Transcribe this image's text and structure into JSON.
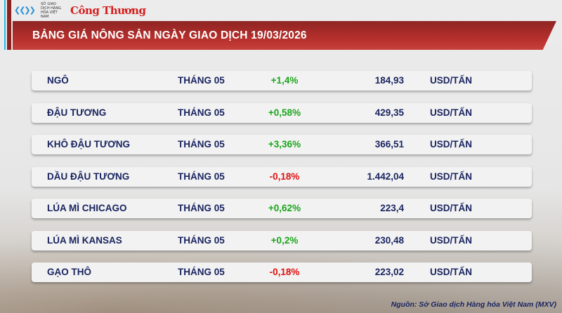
{
  "header": {
    "logo_org": "SỞ GIAO DỊCH HÀNG HÓA VIỆT NAM",
    "logo_brand": "Công Thương",
    "title": "BẢNG GIÁ NÔNG SẢN NGÀY GIAO DỊCH 19/03/2026"
  },
  "colors": {
    "banner": "#b52f2c",
    "up": "#1aa51a",
    "down": "#e01010",
    "text": "#1a2560"
  },
  "rows": [
    {
      "name": "NGÔ",
      "month": "THÁNG 05",
      "change": "+1,4%",
      "direction": "up",
      "price": "184,93",
      "unit": "USD/TẤN"
    },
    {
      "name": "ĐẬU TƯƠNG",
      "month": "THÁNG 05",
      "change": "+0,58%",
      "direction": "up",
      "price": "429,35",
      "unit": "USD/TẤN"
    },
    {
      "name": "KHÔ ĐẬU TƯƠNG",
      "month": "THÁNG 05",
      "change": "+3,36%",
      "direction": "up",
      "price": "366,51",
      "unit": "USD/TẤN"
    },
    {
      "name": "DẦU ĐẬU TƯƠNG",
      "month": "THÁNG 05",
      "change": "-0,18%",
      "direction": "down",
      "price": "1.442,04",
      "unit": "USD/TẤN"
    },
    {
      "name": "LÚA MÌ CHICAGO",
      "month": "THÁNG 05",
      "change": "+0,62%",
      "direction": "up",
      "price": "223,4",
      "unit": "USD/TẤN"
    },
    {
      "name": "LÚA MÌ KANSAS",
      "month": "THÁNG 05",
      "change": "+0,2%",
      "direction": "up",
      "price": "230,48",
      "unit": "USD/TẤN"
    },
    {
      "name": "GẠO THÔ",
      "month": "THÁNG 05",
      "change": "-0,18%",
      "direction": "down",
      "price": "223,02",
      "unit": "USD/TẤN"
    }
  ],
  "footer": {
    "source": "Nguồn: Sở Giao dịch Hàng hóa Việt Nam (MXV)"
  }
}
